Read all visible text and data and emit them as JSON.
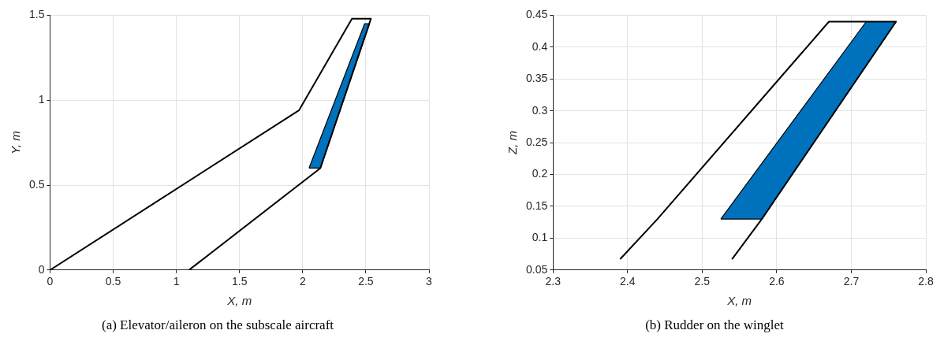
{
  "chart_data": [
    {
      "type": "line",
      "title": "(a) Elevator/aileron on the subscale aircraft",
      "xlabel": "X, m",
      "ylabel": "Y, m",
      "xlim": [
        0,
        3
      ],
      "ylim": [
        0,
        1.5
      ],
      "xticks": [
        0,
        0.5,
        1,
        1.5,
        2,
        2.5,
        3
      ],
      "yticks": [
        0,
        0.5,
        1,
        1.5
      ],
      "grid": true,
      "marker": "none",
      "line_style": "solid",
      "series": [
        {
          "color": "#000000",
          "x": [
            0,
            1.97,
            2.39,
            2.54,
            2.14,
            1.1
          ],
          "values": [
            0,
            0.94,
            1.48,
            1.48,
            0.6,
            0
          ]
        },
        {
          "type": "area",
          "color": "#0072bd",
          "x": [
            2.05,
            2.14,
            2.53,
            2.49,
            2.05
          ],
          "values": [
            0.6,
            0.6,
            1.45,
            1.45,
            0.6
          ]
        }
      ]
    },
    {
      "type": "line",
      "title": "(b) Rudder on the winglet",
      "xlabel": "X, m",
      "ylabel": "Z, m",
      "xlim": [
        2.3,
        2.8
      ],
      "ylim": [
        0.05,
        0.45
      ],
      "xticks": [
        2.3,
        2.4,
        2.5,
        2.6,
        2.7,
        2.8
      ],
      "yticks": [
        0.05,
        0.1,
        0.15,
        0.2,
        0.25,
        0.3,
        0.35,
        0.4,
        0.45
      ],
      "grid": true,
      "marker": "none",
      "line_style": "solid",
      "series": [
        {
          "color": "#000000",
          "x": [
            2.39,
            2.44,
            2.67,
            2.76,
            2.58,
            2.54
          ],
          "values": [
            0.067,
            0.13,
            0.44,
            0.44,
            0.13,
            0.067
          ]
        },
        {
          "type": "area",
          "color": "#0072bd",
          "x": [
            2.525,
            2.58,
            2.76,
            2.72,
            2.525
          ],
          "values": [
            0.13,
            0.13,
            0.44,
            0.44,
            0.13
          ]
        }
      ]
    }
  ]
}
